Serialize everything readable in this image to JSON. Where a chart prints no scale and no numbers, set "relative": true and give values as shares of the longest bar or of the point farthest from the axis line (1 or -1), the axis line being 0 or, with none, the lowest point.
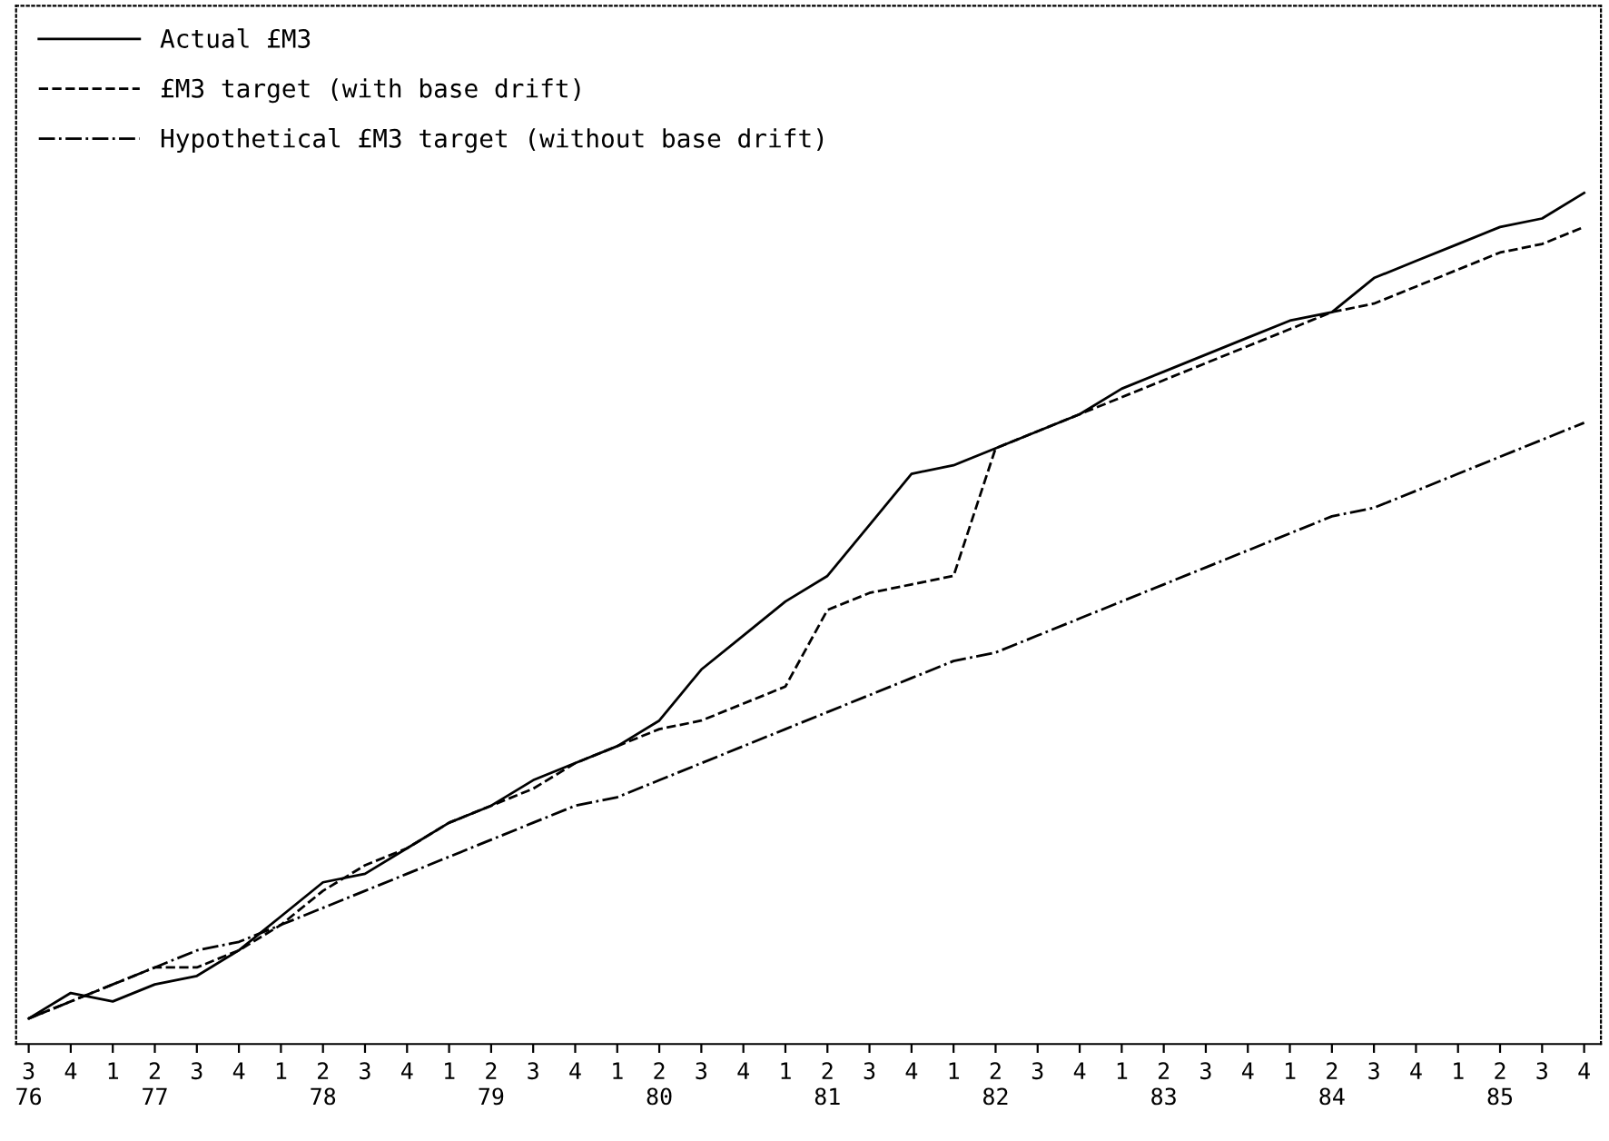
{
  "chart_data": {
    "type": "line",
    "relative": true,
    "legend": "top left",
    "grid": false,
    "categories": [
      "3\n76",
      "4",
      "1",
      "2\n77",
      "3",
      "4",
      "1",
      "2\n78",
      "3",
      "4",
      "1",
      "2\n79",
      "3",
      "4",
      "1",
      "2\n80",
      "3",
      "4",
      "1",
      "2\n81",
      "3",
      "4",
      "1",
      "2\n82",
      "3",
      "4",
      "1",
      "2\n83",
      "3",
      "4",
      "1",
      "2\n84",
      "3",
      "4",
      "1",
      "2\n85",
      "3",
      "4"
    ],
    "series": [
      {
        "name": "Actual £M3",
        "color": "#000000",
        "line_style": "solid",
        "values": [
          0.03,
          0.06,
          0.05,
          0.07,
          0.08,
          0.11,
          0.15,
          0.19,
          0.2,
          0.23,
          0.26,
          0.28,
          0.31,
          0.33,
          0.35,
          0.38,
          0.44,
          0.48,
          0.52,
          0.55,
          0.61,
          0.67,
          0.68,
          0.7,
          0.72,
          0.74,
          0.77,
          0.79,
          0.81,
          0.83,
          0.85,
          0.86,
          0.9,
          0.92,
          0.94,
          0.96,
          0.97,
          1.0
        ]
      },
      {
        "name": "£M3 target (with base drift)",
        "color": "#000000",
        "line_style": "dashed",
        "values": [
          0.03,
          0.05,
          0.07,
          0.09,
          0.09,
          0.11,
          0.14,
          0.18,
          0.21,
          0.23,
          0.26,
          0.28,
          0.3,
          0.33,
          0.35,
          0.37,
          0.38,
          0.4,
          0.42,
          0.51,
          0.53,
          0.54,
          0.55,
          0.7,
          0.72,
          0.74,
          0.76,
          0.78,
          0.8,
          0.82,
          0.84,
          0.86,
          0.87,
          0.89,
          0.91,
          0.93,
          0.94,
          0.96
        ]
      },
      {
        "name": "Hypothetical £M3 target (without base drift)",
        "color": "#000000",
        "line_style": "dashdot",
        "values": [
          0.03,
          0.05,
          0.07,
          0.09,
          0.11,
          0.12,
          0.14,
          0.16,
          0.18,
          0.2,
          0.22,
          0.24,
          0.26,
          0.28,
          0.29,
          0.31,
          0.33,
          0.35,
          0.37,
          0.39,
          0.41,
          0.43,
          0.45,
          0.46,
          0.48,
          0.5,
          0.52,
          0.54,
          0.56,
          0.58,
          0.6,
          0.62,
          0.63,
          0.65,
          0.67,
          0.69,
          0.71,
          0.73
        ]
      }
    ]
  }
}
